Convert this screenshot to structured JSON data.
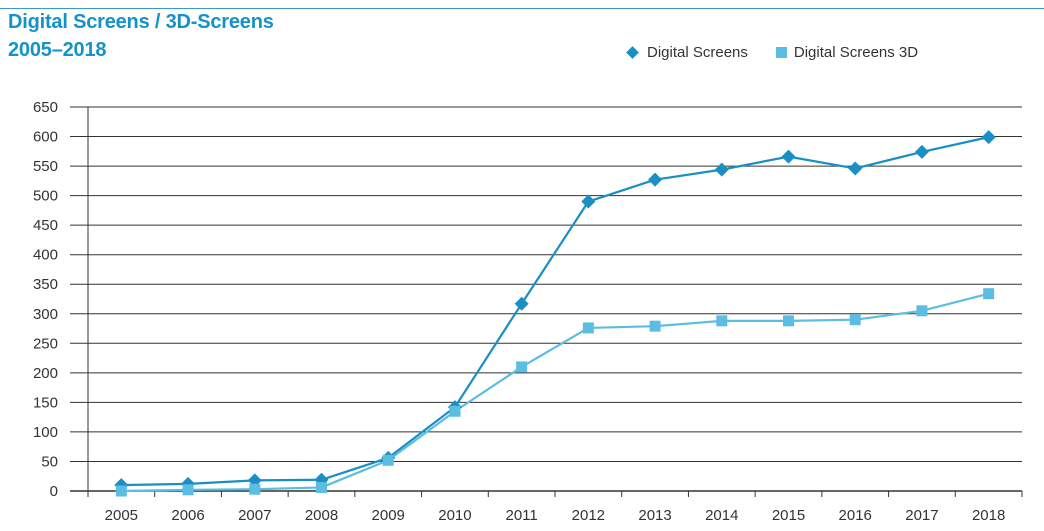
{
  "header": {
    "title_line1": "Digital Screens / 3D-Screens",
    "title_line2": "2005–2018"
  },
  "colors": {
    "title": "#1593c8",
    "series_digital": "#1a8fc4",
    "series_3d": "#5cbde3",
    "grid": "#333333"
  },
  "chart_data": {
    "type": "line",
    "title": "Digital Screens / 3D-Screens 2005–2018",
    "xlabel": "",
    "ylabel": "",
    "ylim": [
      0,
      650
    ],
    "yticks": [
      0,
      50,
      100,
      150,
      200,
      250,
      300,
      350,
      400,
      450,
      500,
      550,
      600,
      650
    ],
    "categories": [
      "2005",
      "2006",
      "2007",
      "2008",
      "2009",
      "2010",
      "2011",
      "2012",
      "2013",
      "2014",
      "2015",
      "2016",
      "2017",
      "2018"
    ],
    "grid": true,
    "legend_position": "top-right",
    "series": [
      {
        "name": "Digital Screens",
        "marker": "diamond",
        "color": "#1a8fc4",
        "values": [
          10,
          12,
          18,
          19,
          56,
          142,
          317,
          490,
          527,
          544,
          566,
          546,
          574,
          599
        ]
      },
      {
        "name": "Digital Screens 3D",
        "marker": "square",
        "color": "#5cbde3",
        "values": [
          0,
          2,
          3,
          6,
          52,
          135,
          210,
          276,
          279,
          288,
          288,
          290,
          305,
          334
        ]
      }
    ]
  }
}
